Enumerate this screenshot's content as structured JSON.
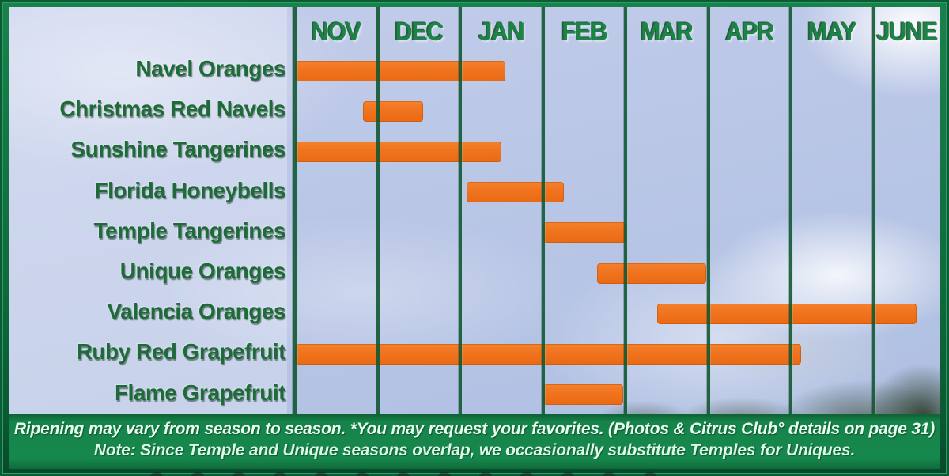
{
  "chart_data": {
    "type": "bar",
    "subtype": "gantt-season-ranges",
    "title": "",
    "x_axis": {
      "position": "top",
      "unit": "month",
      "labels": [
        "NOV",
        "DEC",
        "JAN",
        "FEB",
        "MAR",
        "APR",
        "MAY",
        "JUNE"
      ],
      "range": [
        0,
        8
      ]
    },
    "grid": "vertical-column-lines",
    "legend": "none",
    "rows": [
      {
        "label": "Navel Oranges",
        "start": 0.0,
        "end": 2.55
      },
      {
        "label": "Christmas Red Navels",
        "start": 0.82,
        "end": 1.55
      },
      {
        "label": "Sunshine Tangerines",
        "start": 0.0,
        "end": 2.5
      },
      {
        "label": "Florida Honeybells",
        "start": 2.08,
        "end": 3.25
      },
      {
        "label": "Temple Tangerines",
        "start": 3.0,
        "end": 4.0
      },
      {
        "label": "Unique Oranges",
        "start": 3.66,
        "end": 4.98
      },
      {
        "label": "Valencia Oranges",
        "start": 4.38,
        "end": 7.65
      },
      {
        "label": "Ruby Red Grapefruit",
        "start": 0.0,
        "end": 6.12
      },
      {
        "label": "Flame Grapefruit",
        "start": 3.0,
        "end": 3.97
      }
    ]
  },
  "footer": {
    "line1": "Ripening may vary from season to season.  *You may request your favorites. (Photos & Citrus Club° details on page 31)",
    "line2": "Note: Since Temple and Unique seasons overlap, we occasionally substitute Temples for Uniques."
  },
  "colors": {
    "bar": "#f0731e",
    "grid_line": "#115834",
    "month_text": "#1d8446",
    "row_label_text": "#1e6b39",
    "footer_bg": "#16844a",
    "footer_text": "#eafdf1",
    "sky": "#b9c6e6",
    "frame_green": "#0f6b3a"
  }
}
